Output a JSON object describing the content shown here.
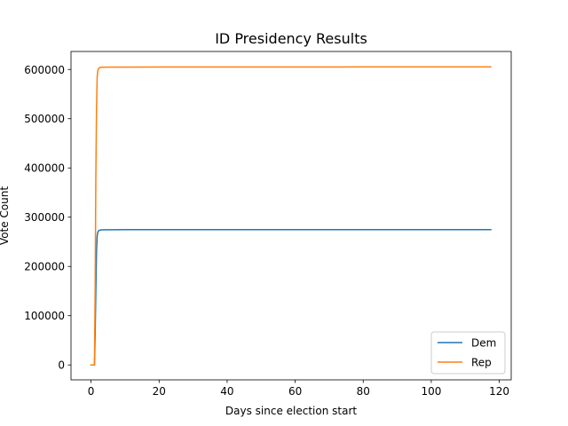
{
  "chart_data": {
    "type": "line",
    "title": "ID Presidency Results",
    "xlabel": "Days since election start",
    "ylabel": "Vote Count",
    "xlim": [
      -5.9,
      123.5
    ],
    "ylim": [
      -30300,
      636500
    ],
    "xticks": [
      0,
      20,
      40,
      60,
      80,
      100,
      120
    ],
    "yticks": [
      0,
      100000,
      200000,
      300000,
      400000,
      500000,
      600000
    ],
    "grid": false,
    "legend": "lower-right",
    "series": [
      {
        "name": "Dem",
        "color": "#1f77b4",
        "x": [
          0,
          0.6,
          1.0,
          1.2,
          1.4,
          1.6,
          1.8,
          2.0,
          2.3,
          3.0,
          5.0,
          10,
          20,
          40,
          60,
          80,
          100,
          117.5
        ],
        "y": [
          0,
          0,
          0,
          60000,
          150000,
          230000,
          262000,
          270000,
          273000,
          274200,
          274500,
          274600,
          274700,
          274700,
          274700,
          274800,
          274800,
          274800
        ]
      },
      {
        "name": "Rep",
        "color": "#ff7f0e",
        "x": [
          0,
          0.6,
          1.0,
          1.2,
          1.4,
          1.6,
          1.8,
          2.0,
          2.3,
          3.0,
          5.0,
          10,
          20,
          40,
          60,
          80,
          100,
          117.5
        ],
        "y": [
          0,
          0,
          0,
          150000,
          380000,
          520000,
          585000,
          598000,
          603000,
          604500,
          604700,
          604800,
          604900,
          605000,
          605000,
          605100,
          605100,
          605200
        ]
      }
    ]
  }
}
